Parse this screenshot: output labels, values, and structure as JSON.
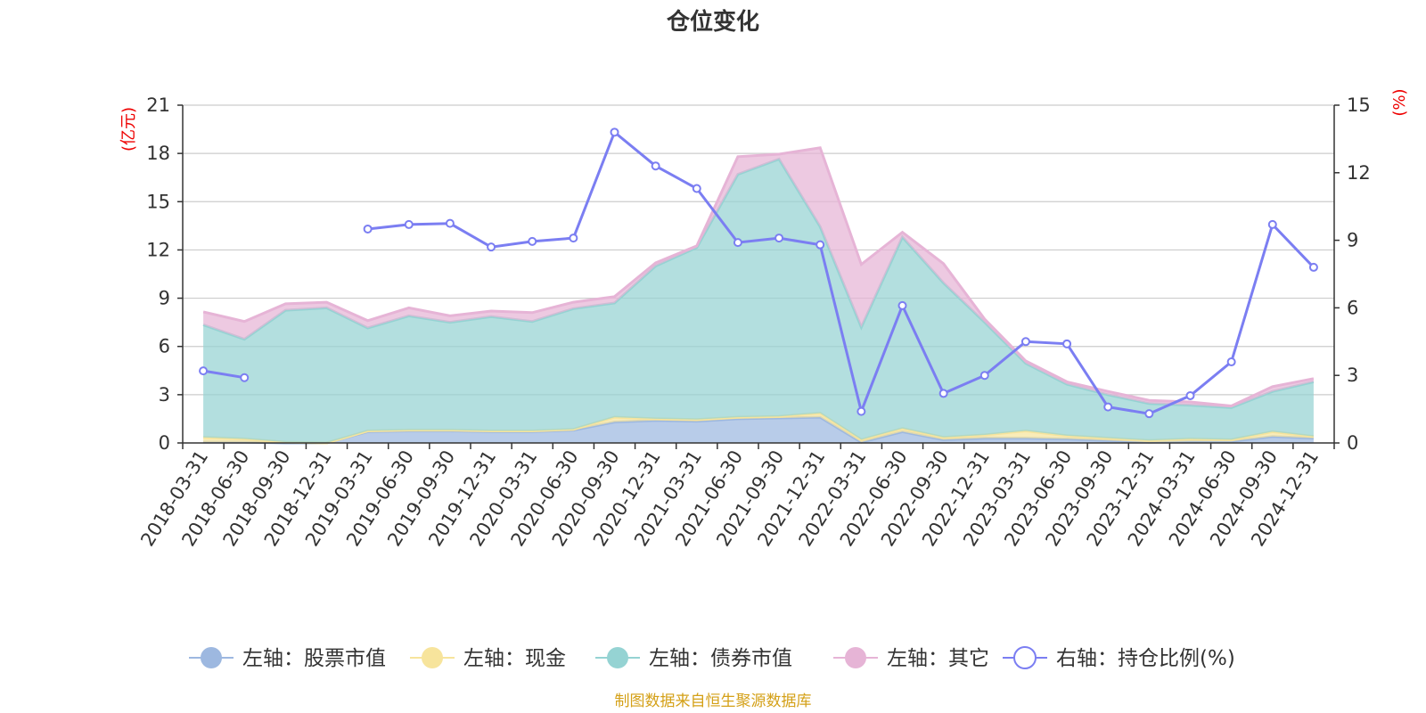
{
  "colors": {
    "stock": "#9db8e0",
    "cash": "#f7e49c",
    "bond": "#95d3d3",
    "other": "#e6b4d6",
    "ratio": "#7b7ef2",
    "unit": "#ee0000",
    "source": "#d4a017"
  },
  "chart_data": {
    "type": "area",
    "title": "仓位变化",
    "left_unit": "(亿元)",
    "right_unit": "(%)",
    "source_note": "制图数据来自恒生聚源数据库",
    "left_ylim": [
      0,
      21
    ],
    "left_ticks": [
      "0",
      "3",
      "6",
      "9",
      "12",
      "15",
      "18",
      "21"
    ],
    "right_ylim": [
      0,
      15
    ],
    "right_ticks": [
      "0",
      "3",
      "6",
      "9",
      "12",
      "15"
    ],
    "grid": true,
    "legend_position": "bottom",
    "categories": [
      "2018-03-31",
      "2018-06-30",
      "2018-09-30",
      "2018-12-31",
      "2019-03-31",
      "2019-06-30",
      "2019-09-30",
      "2019-12-31",
      "2020-03-31",
      "2020-06-30",
      "2020-09-30",
      "2020-12-31",
      "2021-03-31",
      "2021-06-30",
      "2021-09-30",
      "2021-12-31",
      "2022-03-31",
      "2022-06-30",
      "2022-09-30",
      "2022-12-31",
      "2023-03-31",
      "2023-06-30",
      "2023-09-30",
      "2023-12-31",
      "2024-03-31",
      "2024-06-30",
      "2024-09-30",
      "2024-12-31"
    ],
    "series": [
      {
        "name": "左轴：股票市值",
        "key": "stock",
        "axis": "left",
        "stacked": true,
        "values": [
          0.05,
          0.05,
          0.0,
          0.0,
          0.7,
          0.75,
          0.75,
          0.7,
          0.7,
          0.8,
          1.3,
          1.4,
          1.35,
          1.5,
          1.55,
          1.6,
          0.05,
          0.7,
          0.2,
          0.3,
          0.3,
          0.25,
          0.15,
          0.05,
          0.1,
          0.1,
          0.4,
          0.3
        ]
      },
      {
        "name": "左轴：现金",
        "key": "cash",
        "axis": "left",
        "stacked": true,
        "values": [
          0.3,
          0.2,
          0.05,
          0.0,
          0.05,
          0.05,
          0.05,
          0.05,
          0.05,
          0.05,
          0.3,
          0.1,
          0.1,
          0.1,
          0.1,
          0.25,
          0.15,
          0.2,
          0.15,
          0.2,
          0.45,
          0.2,
          0.15,
          0.1,
          0.15,
          0.1,
          0.3,
          0.1
        ]
      },
      {
        "name": "左轴：债券市值",
        "key": "bond",
        "axis": "left",
        "stacked": true,
        "values": [
          7.0,
          6.2,
          8.2,
          8.4,
          6.4,
          7.1,
          6.7,
          7.1,
          6.8,
          7.5,
          7.1,
          9.5,
          10.7,
          15.1,
          16.0,
          11.6,
          7.0,
          11.9,
          9.6,
          7.0,
          4.2,
          3.2,
          2.7,
          2.3,
          2.1,
          2.0,
          2.5,
          3.4
        ]
      },
      {
        "name": "左轴：其它",
        "key": "other",
        "axis": "left",
        "stacked": true,
        "values": [
          0.8,
          1.1,
          0.4,
          0.35,
          0.45,
          0.5,
          0.4,
          0.35,
          0.55,
          0.4,
          0.4,
          0.2,
          0.1,
          1.1,
          0.3,
          4.9,
          3.9,
          0.3,
          1.2,
          0.2,
          0.15,
          0.15,
          0.2,
          0.2,
          0.2,
          0.1,
          0.3,
          0.2
        ]
      },
      {
        "name": "右轴：持仓比例(%)",
        "key": "ratio",
        "axis": "right",
        "type": "line",
        "values": [
          3.2,
          2.9,
          null,
          null,
          9.5,
          9.7,
          9.75,
          8.7,
          8.95,
          9.1,
          13.8,
          12.3,
          11.3,
          8.9,
          9.1,
          8.8,
          1.4,
          6.1,
          2.2,
          3.0,
          4.5,
          4.4,
          1.6,
          1.3,
          2.1,
          3.6,
          9.7,
          7.8
        ]
      }
    ]
  }
}
